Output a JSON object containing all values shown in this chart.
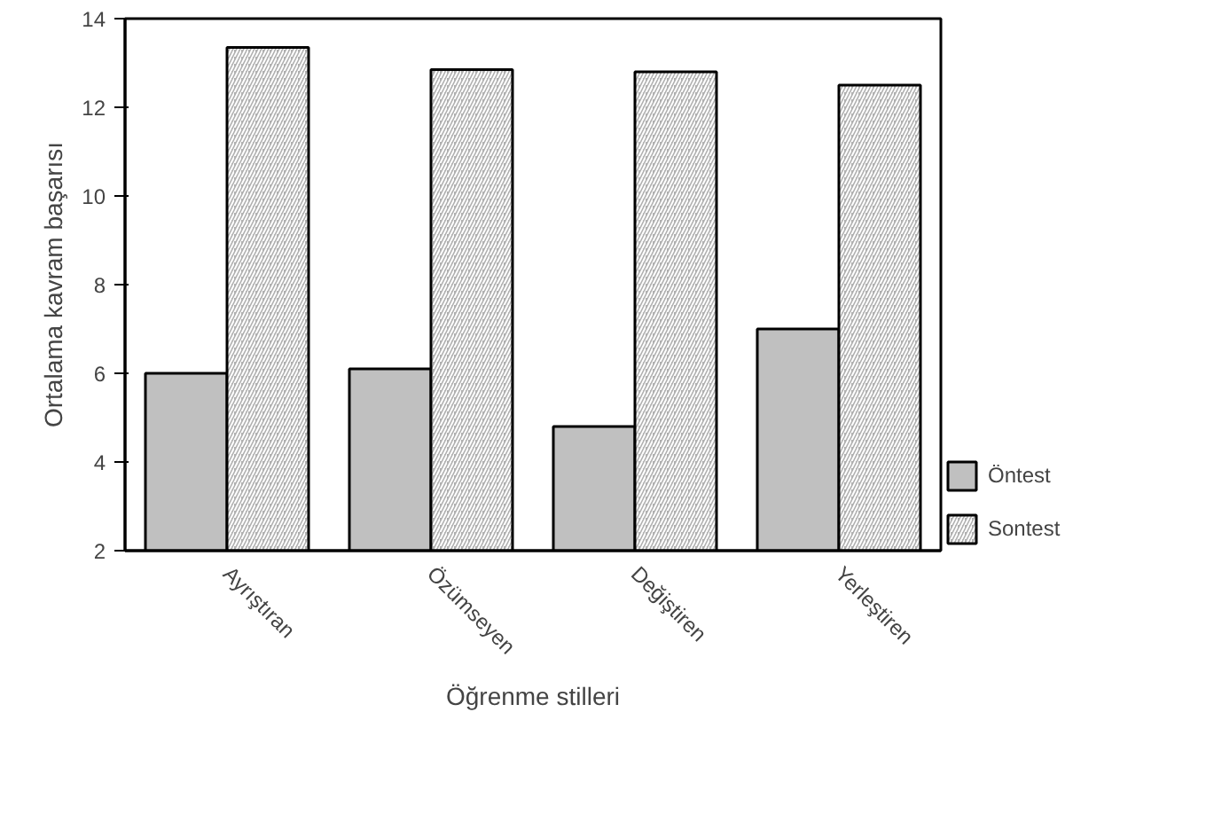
{
  "chart_data": {
    "type": "bar",
    "xlabel": "Öğrenme stilleri",
    "ylabel": "Ortalama kavram başarısı",
    "categories": [
      "Ayrıştıran",
      "Özümseyen",
      "Değiştiren",
      "Yerleştiren"
    ],
    "series": [
      {
        "name": "Öntest",
        "color": "#c0c0c0",
        "values": [
          6.0,
          6.1,
          4.8,
          7.0
        ]
      },
      {
        "name": "Sontest",
        "color": "#b0b0b0",
        "values": [
          13.35,
          12.85,
          12.8,
          12.5
        ]
      }
    ],
    "ylim": [
      2,
      14
    ],
    "yticks": [
      2,
      4,
      6,
      8,
      10,
      12,
      14
    ],
    "grid": false,
    "legend": "bottom right"
  }
}
